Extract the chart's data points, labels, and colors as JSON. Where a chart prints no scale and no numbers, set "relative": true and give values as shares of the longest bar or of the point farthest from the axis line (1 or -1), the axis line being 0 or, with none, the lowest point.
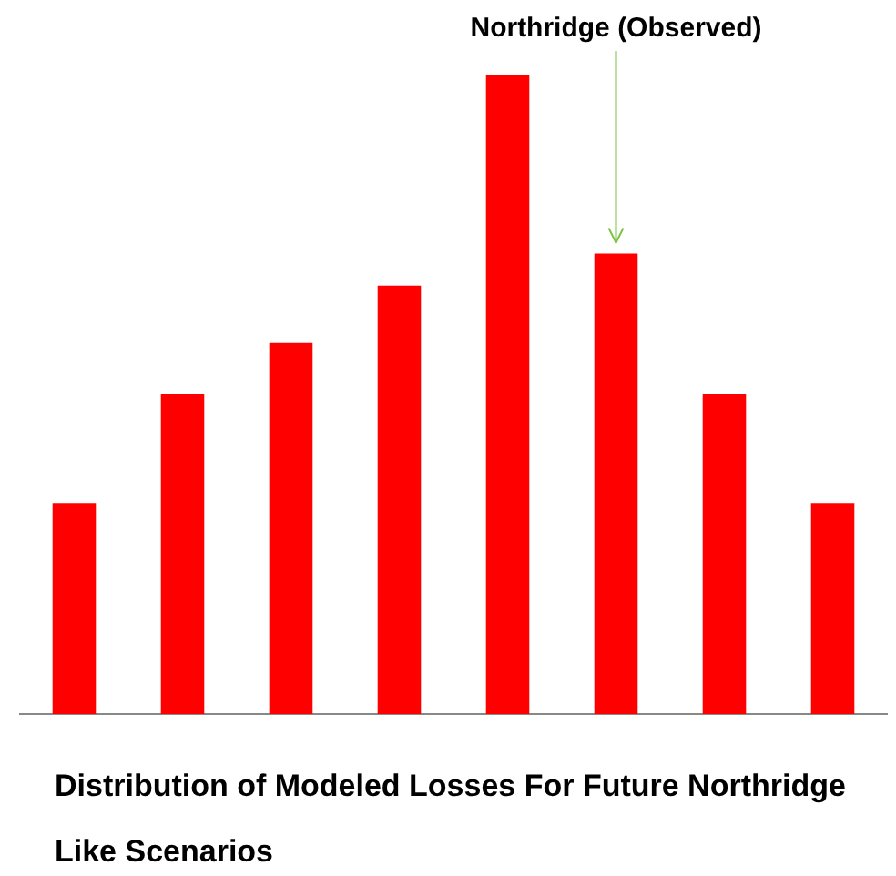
{
  "chart_data": {
    "type": "bar",
    "relative": true,
    "title": "Distribution of Modeled Losses For Future Northridge Like Scenarios",
    "categories": [
      null,
      null,
      null,
      null,
      null,
      null,
      null,
      null
    ],
    "values": [
      0.33,
      0.5,
      0.58,
      0.67,
      1,
      0.72,
      0.5,
      0.33
    ],
    "color": "#ff0000",
    "annotations": [
      {
        "text": "Northridge (Observed)",
        "y": 0.72
      }
    ]
  }
}
